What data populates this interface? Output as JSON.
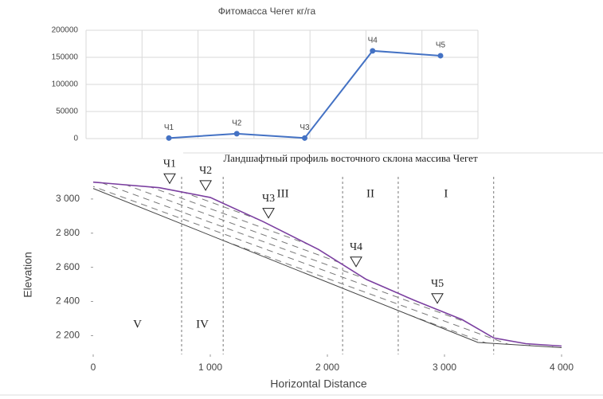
{
  "chart_data": [
    {
      "type": "line",
      "title": "Фитомасса Чегет кг/га",
      "categories": [
        null,
        null,
        null,
        null,
        null
      ],
      "series": [
        {
          "color": "#4472c4",
          "values": [
            1000,
            9000,
            1000,
            162000,
            153000
          ],
          "point_labels": [
            "Ч1",
            "Ч2",
            "Ч3",
            "Ч4",
            "Ч5"
          ]
        }
      ],
      "ylim": [
        0,
        200000
      ],
      "yticks": [
        0,
        50000,
        100000,
        150000,
        200000
      ],
      "grid": true
    },
    {
      "type": "profile",
      "title": "Ландшафтный профиль восточного склона массива Чегет",
      "x_label": "Horizontal Distance",
      "y_label": "Elevation",
      "x": [
        0,
        565,
        1000,
        1450,
        1925,
        2333,
        2741,
        3150,
        3422,
        3694,
        4000
      ],
      "series": [
        {
          "color": "#7b3fa0",
          "values": [
            3099,
            3066,
            3009,
            2868,
            2704,
            2529,
            2407,
            2294,
            2186,
            2153,
            2139
          ]
        }
      ],
      "xlim": [
        0,
        4000
      ],
      "ylim": [
        2090,
        3130
      ],
      "xticks": [
        0,
        {
          "value": 1000,
          "label": "1 000"
        },
        {
          "value": 2000,
          "label": "2 000"
        },
        {
          "value": 3000,
          "label": "3 000"
        },
        {
          "value": 4000,
          "label": "4 000"
        }
      ],
      "yticks": [
        {
          "value": 2200,
          "label": "2 200"
        },
        {
          "value": 2400,
          "label": "2 400"
        },
        {
          "value": 2600,
          "label": "2 600"
        },
        {
          "value": 2800,
          "label": "2 800"
        },
        {
          "value": 3000,
          "label": "3 000"
        }
      ],
      "zone_boundaries": [
        755,
        1110,
        2130,
        2605,
        3420
      ],
      "zone_labels": [
        "V",
        "IV",
        "III",
        "II",
        "I"
      ],
      "points": [
        {
          "label": "Ч1",
          "x": 653
        },
        {
          "label": "Ч2",
          "x": 960
        },
        {
          "label": "Ч3",
          "x": 1497
        },
        {
          "label": "Ч4",
          "x": 2245
        },
        {
          "label": "Ч5",
          "x": 2939
        }
      ]
    }
  ]
}
